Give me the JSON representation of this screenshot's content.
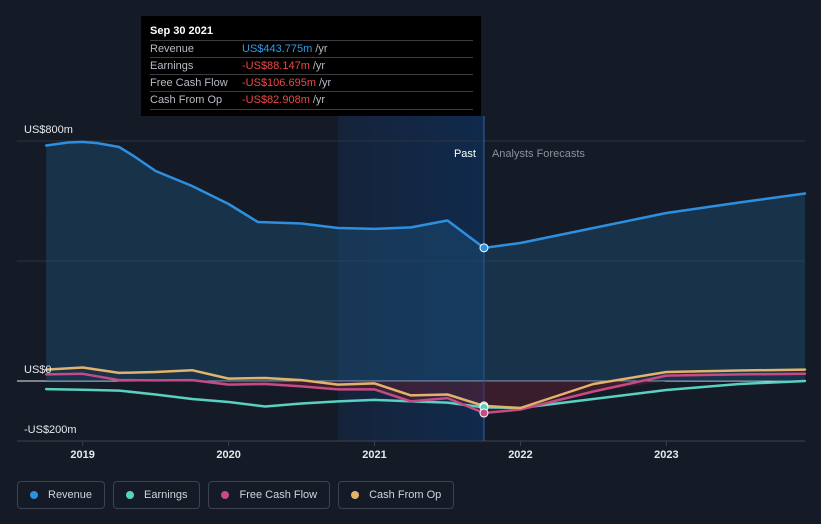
{
  "tooltip": {
    "date": "Sep 30 2021",
    "rows": [
      {
        "label": "Revenue",
        "value": "US$443.775m",
        "unit": "/yr"
      },
      {
        "label": "Earnings",
        "value": "-US$88.147m",
        "unit": "/yr"
      },
      {
        "label": "Free Cash Flow",
        "value": "-US$106.695m",
        "unit": "/yr"
      },
      {
        "label": "Cash From Op",
        "value": "-US$82.908m",
        "unit": "/yr"
      }
    ]
  },
  "colors": {
    "revenue": "#2d8fe0",
    "earnings": "#58d1c1",
    "fcf": "#c54a86",
    "cfo": "#e2b36a",
    "positive": "#2f9be6",
    "negative": "#ef4747"
  },
  "legend": [
    {
      "key": "revenue",
      "label": "Revenue"
    },
    {
      "key": "earnings",
      "label": "Earnings"
    },
    {
      "key": "fcf",
      "label": "Free Cash Flow"
    },
    {
      "key": "cfo",
      "label": "Cash From Op"
    }
  ],
  "chart_data": {
    "type": "line",
    "title": "",
    "units": "US$ millions",
    "y_axis_labels": [
      "US$800m",
      "US$0",
      "-US$200m"
    ],
    "ylim": [
      -200,
      800
    ],
    "x_tick_labels": [
      "2019",
      "2020",
      "2021",
      "2022",
      "2023"
    ],
    "x_ticks": [
      2019,
      2020,
      2021,
      2022,
      2023
    ],
    "xlim": [
      2018.55,
      2023.95
    ],
    "past_label": "Past",
    "forecast_label": "Analysts Forecasts",
    "divider_x": 2021.75,
    "highlight_range": [
      2020.75,
      2021.75
    ],
    "hover": {
      "x": 2021.75,
      "revenue": 443.775,
      "earnings": -88.147,
      "fcf": -106.695,
      "cfo": -82.908
    },
    "series": [
      {
        "key": "revenue",
        "name": "Revenue",
        "x": [
          2018.75,
          2018.9,
          2019.0,
          2019.1,
          2019.25,
          2019.35,
          2019.5,
          2019.75,
          2020.0,
          2020.2,
          2020.5,
          2020.75,
          2021.0,
          2021.25,
          2021.5,
          2021.75
        ],
        "values": [
          785,
          795,
          797,
          793,
          780,
          750,
          700,
          650,
          590,
          530,
          525,
          510,
          507,
          512,
          535,
          443.775
        ]
      },
      {
        "key": "revenue_forecast",
        "name": "Revenue forecast",
        "x": [
          2021.75,
          2022.0,
          2022.5,
          2023.0,
          2023.5,
          2023.95
        ],
        "values": [
          443.775,
          460,
          510,
          560,
          595,
          625
        ]
      },
      {
        "key": "earnings",
        "name": "Earnings",
        "x": [
          2018.75,
          2019.0,
          2019.25,
          2019.5,
          2019.75,
          2020.0,
          2020.25,
          2020.5,
          2020.75,
          2021.0,
          2021.25,
          2021.5,
          2021.75
        ],
        "values": [
          -27,
          -29,
          -32,
          -45,
          -60,
          -70,
          -85,
          -75,
          -68,
          -63,
          -68,
          -72,
          -88.147
        ]
      },
      {
        "key": "earnings_forecast",
        "name": "Earnings forecast",
        "x": [
          2021.75,
          2022.0,
          2022.5,
          2023.0,
          2023.5,
          2023.95
        ],
        "values": [
          -88.147,
          -90,
          -60,
          -30,
          -10,
          0
        ]
      },
      {
        "key": "fcf",
        "name": "Free Cash Flow",
        "x": [
          2018.75,
          2019.0,
          2019.25,
          2019.5,
          2019.75,
          2020.0,
          2020.25,
          2020.5,
          2020.75,
          2021.0,
          2021.25,
          2021.5,
          2021.75
        ],
        "values": [
          22,
          24,
          3,
          2,
          3,
          -12,
          -10,
          -18,
          -28,
          -28,
          -68,
          -57,
          -106.695
        ]
      },
      {
        "key": "fcf_forecast",
        "name": "Free Cash Flow forecast",
        "x": [
          2021.75,
          2022.0,
          2022.5,
          2023.0,
          2023.5,
          2023.95
        ],
        "values": [
          -106.695,
          -95,
          -35,
          18,
          22,
          24
        ]
      },
      {
        "key": "cfo",
        "name": "Cash From Op",
        "x": [
          2018.75,
          2019.0,
          2019.25,
          2019.5,
          2019.75,
          2020.0,
          2020.25,
          2020.5,
          2020.75,
          2021.0,
          2021.25,
          2021.5,
          2021.75
        ],
        "values": [
          38,
          45,
          27,
          30,
          36,
          8,
          10,
          3,
          -12,
          -8,
          -48,
          -45,
          -82.908
        ]
      },
      {
        "key": "cfo_forecast",
        "name": "Cash From Op forecast",
        "x": [
          2021.75,
          2022.0,
          2022.5,
          2023.0,
          2023.5,
          2023.95
        ],
        "values": [
          -82.908,
          -90,
          -10,
          30,
          35,
          38
        ]
      }
    ]
  }
}
